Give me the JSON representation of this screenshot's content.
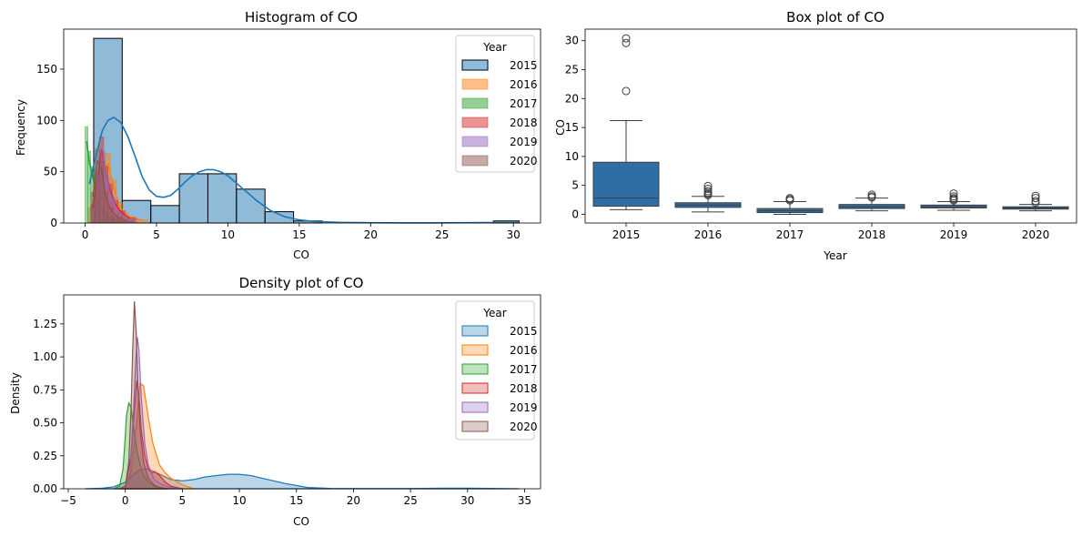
{
  "colors": {
    "2015": "#1f77b4",
    "2016": "#ff7f0e",
    "2017": "#2ca02c",
    "2018": "#d62728",
    "2019": "#9467bd",
    "2020": "#8c564b",
    "box_fill": "#2f6ea5",
    "axis": "#000000"
  },
  "chart_data": [
    {
      "type": "bar",
      "title": "Histogram of CO",
      "xlabel": "CO",
      "ylabel": "Frequency",
      "xlim": [
        -1.5,
        31.9
      ],
      "ylim": [
        0,
        189
      ],
      "xticks": [
        0,
        5,
        10,
        15,
        20,
        25,
        30
      ],
      "yticks": [
        0,
        50,
        100,
        150
      ],
      "legend": {
        "title": "Year",
        "entries": [
          "2015",
          "2016",
          "2017",
          "2018",
          "2019",
          "2020"
        ],
        "placement": "top-right"
      },
      "bins_2015": [
        {
          "x0": 0.6,
          "x1": 2.6,
          "count": 180
        },
        {
          "x0": 2.6,
          "x1": 4.6,
          "count": 22
        },
        {
          "x0": 4.6,
          "x1": 6.6,
          "count": 17
        },
        {
          "x0": 6.6,
          "x1": 8.6,
          "count": 48
        },
        {
          "x0": 8.6,
          "x1": 10.6,
          "count": 48
        },
        {
          "x0": 10.6,
          "x1": 12.6,
          "count": 33
        },
        {
          "x0": 12.6,
          "x1": 14.6,
          "count": 11
        },
        {
          "x0": 14.6,
          "x1": 16.6,
          "count": 2
        },
        {
          "x0": 28.6,
          "x1": 30.4,
          "count": 2
        }
      ],
      "kde_2015": {
        "x": [
          0.3,
          0.8,
          1.2,
          1.6,
          2.0,
          2.5,
          3.0,
          3.5,
          4.0,
          4.5,
          5.0,
          5.5,
          6.0,
          6.5,
          7.0,
          7.5,
          8.0,
          8.5,
          9.0,
          9.5,
          10.0,
          10.5,
          11.0,
          11.5,
          12.0,
          12.5,
          13.0,
          14.0,
          15.0,
          16.0,
          18.0,
          20.0,
          22.0,
          25.0,
          28.0,
          30.4
        ],
        "y": [
          38,
          68,
          90,
          100,
          103,
          98,
          84,
          65,
          45,
          32,
          26,
          25,
          27,
          33,
          40,
          46,
          50,
          52,
          52,
          50,
          46,
          40,
          34,
          28,
          22,
          17,
          12,
          6,
          3,
          1.5,
          0.5,
          0.3,
          0.2,
          0.2,
          0.4,
          0.5
        ]
      },
      "other_years_bins": [
        {
          "year": "2016",
          "bins": [
            {
              "x0": 0.2,
              "x1": 0.6,
              "count": 15
            },
            {
              "x0": 0.6,
              "x1": 1.0,
              "count": 40
            },
            {
              "x0": 1.0,
              "x1": 1.4,
              "count": 62
            },
            {
              "x0": 1.4,
              "x1": 1.8,
              "count": 68
            },
            {
              "x0": 1.8,
              "x1": 2.2,
              "count": 42
            },
            {
              "x0": 2.2,
              "x1": 2.6,
              "count": 20
            },
            {
              "x0": 2.6,
              "x1": 3.0,
              "count": 10
            },
            {
              "x0": 3.0,
              "x1": 3.6,
              "count": 6
            },
            {
              "x0": 3.6,
              "x1": 4.4,
              "count": 3
            }
          ]
        },
        {
          "year": "2017",
          "bins": [
            {
              "x0": 0.0,
              "x1": 0.2,
              "count": 94
            },
            {
              "x0": 0.2,
              "x1": 0.4,
              "count": 70
            },
            {
              "x0": 0.4,
              "x1": 0.6,
              "count": 55
            },
            {
              "x0": 0.6,
              "x1": 0.8,
              "count": 40
            },
            {
              "x0": 0.8,
              "x1": 1.0,
              "count": 22
            },
            {
              "x0": 1.0,
              "x1": 1.4,
              "count": 12
            },
            {
              "x0": 1.4,
              "x1": 2.0,
              "count": 6
            },
            {
              "x0": 2.0,
              "x1": 2.8,
              "count": 2
            }
          ]
        },
        {
          "year": "2018",
          "bins": [
            {
              "x0": 0.4,
              "x1": 0.7,
              "count": 18
            },
            {
              "x0": 0.7,
              "x1": 1.0,
              "count": 50
            },
            {
              "x0": 1.0,
              "x1": 1.3,
              "count": 84
            },
            {
              "x0": 1.3,
              "x1": 1.6,
              "count": 55
            },
            {
              "x0": 1.6,
              "x1": 1.9,
              "count": 38
            },
            {
              "x0": 1.9,
              "x1": 2.3,
              "count": 22
            },
            {
              "x0": 2.3,
              "x1": 2.8,
              "count": 12
            },
            {
              "x0": 2.8,
              "x1": 3.5,
              "count": 5
            }
          ]
        },
        {
          "year": "2019",
          "bins": [
            {
              "x0": 0.5,
              "x1": 0.8,
              "count": 15
            },
            {
              "x0": 0.8,
              "x1": 1.1,
              "count": 48
            },
            {
              "x0": 1.1,
              "x1": 1.4,
              "count": 70
            },
            {
              "x0": 1.4,
              "x1": 1.7,
              "count": 45
            },
            {
              "x0": 1.7,
              "x1": 2.1,
              "count": 25
            },
            {
              "x0": 2.1,
              "x1": 2.6,
              "count": 10
            },
            {
              "x0": 2.6,
              "x1": 3.6,
              "count": 4
            }
          ]
        },
        {
          "year": "2020",
          "bins": [
            {
              "x0": 0.4,
              "x1": 0.7,
              "count": 30
            },
            {
              "x0": 0.7,
              "x1": 1.0,
              "count": 72
            },
            {
              "x0": 1.0,
              "x1": 1.3,
              "count": 60
            },
            {
              "x0": 1.3,
              "x1": 1.6,
              "count": 30
            },
            {
              "x0": 1.6,
              "x1": 2.0,
              "count": 15
            },
            {
              "x0": 2.0,
              "x1": 2.6,
              "count": 6
            },
            {
              "x0": 2.6,
              "x1": 3.4,
              "count": 2
            }
          ]
        }
      ]
    },
    {
      "type": "box",
      "title": "Box plot of CO",
      "xlabel": "Year",
      "ylabel": "CO",
      "categories": [
        "2015",
        "2016",
        "2017",
        "2018",
        "2019",
        "2020"
      ],
      "ylim": [
        -1.5,
        32
      ],
      "yticks": [
        0,
        5,
        10,
        15,
        20,
        25,
        30
      ],
      "boxes": [
        {
          "year": "2015",
          "whisker_low": 0.8,
          "q1": 1.4,
          "median": 2.8,
          "q3": 9.0,
          "whisker_high": 16.2,
          "outliers": [
            21.3,
            29.6,
            30.4
          ]
        },
        {
          "year": "2016",
          "whisker_low": 0.4,
          "q1": 1.2,
          "median": 1.6,
          "q3": 2.0,
          "whisker_high": 3.1,
          "outliers": [
            3.3,
            3.5,
            3.7,
            4.0,
            4.4,
            4.9
          ]
        },
        {
          "year": "2017",
          "whisker_low": 0.0,
          "q1": 0.3,
          "median": 0.6,
          "q3": 1.0,
          "whisker_high": 2.2,
          "outliers": [
            2.4,
            2.6,
            2.8
          ]
        },
        {
          "year": "2018",
          "whisker_low": 0.6,
          "q1": 1.0,
          "median": 1.3,
          "q3": 1.7,
          "whisker_high": 2.8,
          "outliers": [
            2.9,
            3.1,
            3.4
          ]
        },
        {
          "year": "2019",
          "whisker_low": 0.7,
          "q1": 1.1,
          "median": 1.3,
          "q3": 1.6,
          "whisker_high": 2.2,
          "outliers": [
            2.4,
            2.6,
            2.8,
            3.1,
            3.6
          ]
        },
        {
          "year": "2020",
          "whisker_low": 0.6,
          "q1": 0.9,
          "median": 1.1,
          "q3": 1.3,
          "whisker_high": 1.7,
          "outliers": [
            2.0,
            2.3,
            2.8,
            3.2
          ]
        }
      ]
    },
    {
      "type": "area",
      "title": "Density plot of CO",
      "xlabel": "CO",
      "ylabel": "Density",
      "xlim": [
        -5.4,
        36.4
      ],
      "ylim": [
        0,
        1.47
      ],
      "xticks": [
        -5,
        0,
        5,
        10,
        15,
        20,
        25,
        30,
        35
      ],
      "yticks": [
        0.0,
        0.25,
        0.5,
        0.75,
        1.0,
        1.25
      ],
      "legend": {
        "title": "Year",
        "entries": [
          "2015",
          "2016",
          "2017",
          "2018",
          "2019",
          "2020"
        ],
        "placement": "top-right"
      },
      "series": [
        {
          "name": "2015",
          "x": [
            -3.5,
            -2,
            -1,
            0,
            0.5,
            1,
            1.5,
            2,
            2.5,
            3,
            4,
            5,
            6,
            7,
            8,
            9,
            10,
            11,
            12,
            13,
            14,
            15,
            16,
            18,
            20,
            25,
            28,
            30,
            32,
            34.5
          ],
          "y": [
            0,
            0.005,
            0.015,
            0.05,
            0.09,
            0.13,
            0.15,
            0.15,
            0.13,
            0.11,
            0.07,
            0.06,
            0.07,
            0.09,
            0.1,
            0.11,
            0.11,
            0.1,
            0.08,
            0.06,
            0.04,
            0.025,
            0.01,
            0.003,
            0.002,
            0.002,
            0.004,
            0.005,
            0.003,
            0
          ]
        },
        {
          "name": "2016",
          "x": [
            -1,
            0,
            0.5,
            1,
            1.3,
            1.6,
            2,
            2.4,
            3,
            3.5,
            4,
            5,
            6
          ],
          "y": [
            0,
            0.01,
            0.12,
            0.5,
            0.8,
            0.78,
            0.55,
            0.35,
            0.18,
            0.12,
            0.08,
            0.03,
            0
          ]
        },
        {
          "name": "2017",
          "x": [
            -1,
            -0.5,
            -0.2,
            0,
            0.1,
            0.3,
            0.5,
            0.7,
            1,
            1.3,
            1.6,
            2,
            2.5,
            3,
            3.5
          ],
          "y": [
            0,
            0.02,
            0.15,
            0.4,
            0.55,
            0.65,
            0.62,
            0.48,
            0.3,
            0.18,
            0.1,
            0.05,
            0.02,
            0.01,
            0
          ]
        },
        {
          "name": "2018",
          "x": [
            -0.5,
            0,
            0.5,
            0.8,
            1.0,
            1.2,
            1.4,
            1.7,
            2,
            2.3,
            2.6,
            3,
            3.5,
            4,
            5
          ],
          "y": [
            0,
            0.02,
            0.25,
            0.6,
            0.82,
            0.7,
            0.45,
            0.25,
            0.15,
            0.12,
            0.13,
            0.1,
            0.05,
            0.02,
            0
          ]
        },
        {
          "name": "2019",
          "x": [
            -0.5,
            0,
            0.4,
            0.7,
            0.9,
            1.05,
            1.2,
            1.4,
            1.7,
            2,
            2.5,
            3,
            4,
            5
          ],
          "y": [
            0,
            0.01,
            0.12,
            0.55,
            0.95,
            1.15,
            1.05,
            0.7,
            0.35,
            0.18,
            0.08,
            0.04,
            0.01,
            0
          ]
        },
        {
          "name": "2020",
          "x": [
            -0.5,
            0,
            0.3,
            0.5,
            0.65,
            0.8,
            0.95,
            1.1,
            1.3,
            1.6,
            2,
            2.5,
            3,
            3.8
          ],
          "y": [
            0,
            0.02,
            0.2,
            0.6,
            1.05,
            1.42,
            1.2,
            0.8,
            0.45,
            0.2,
            0.08,
            0.03,
            0.01,
            0
          ]
        }
      ]
    }
  ]
}
